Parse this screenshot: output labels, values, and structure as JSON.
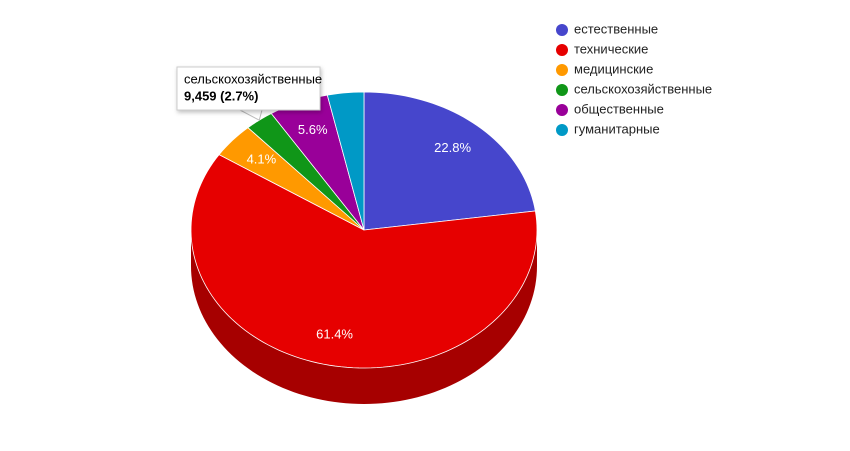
{
  "chart_data": {
    "type": "pie3d",
    "categories": [
      "естественные",
      "технические",
      "медицинские",
      "сельскохозяйственные",
      "общественные",
      "гуманитарные"
    ],
    "values": [
      22.8,
      61.4,
      4.1,
      2.7,
      5.6,
      3.4
    ],
    "value_labels": [
      "22.8%",
      "61.4%",
      "4.1%",
      null,
      "5.6%",
      null
    ],
    "colors": [
      "#4646cc",
      "#e60000",
      "#ff9900",
      "#109618",
      "#990099",
      "#0099c6"
    ],
    "legend": "right",
    "tooltip": {
      "category": 3,
      "text": "9,459 (2.7%)"
    }
  }
}
